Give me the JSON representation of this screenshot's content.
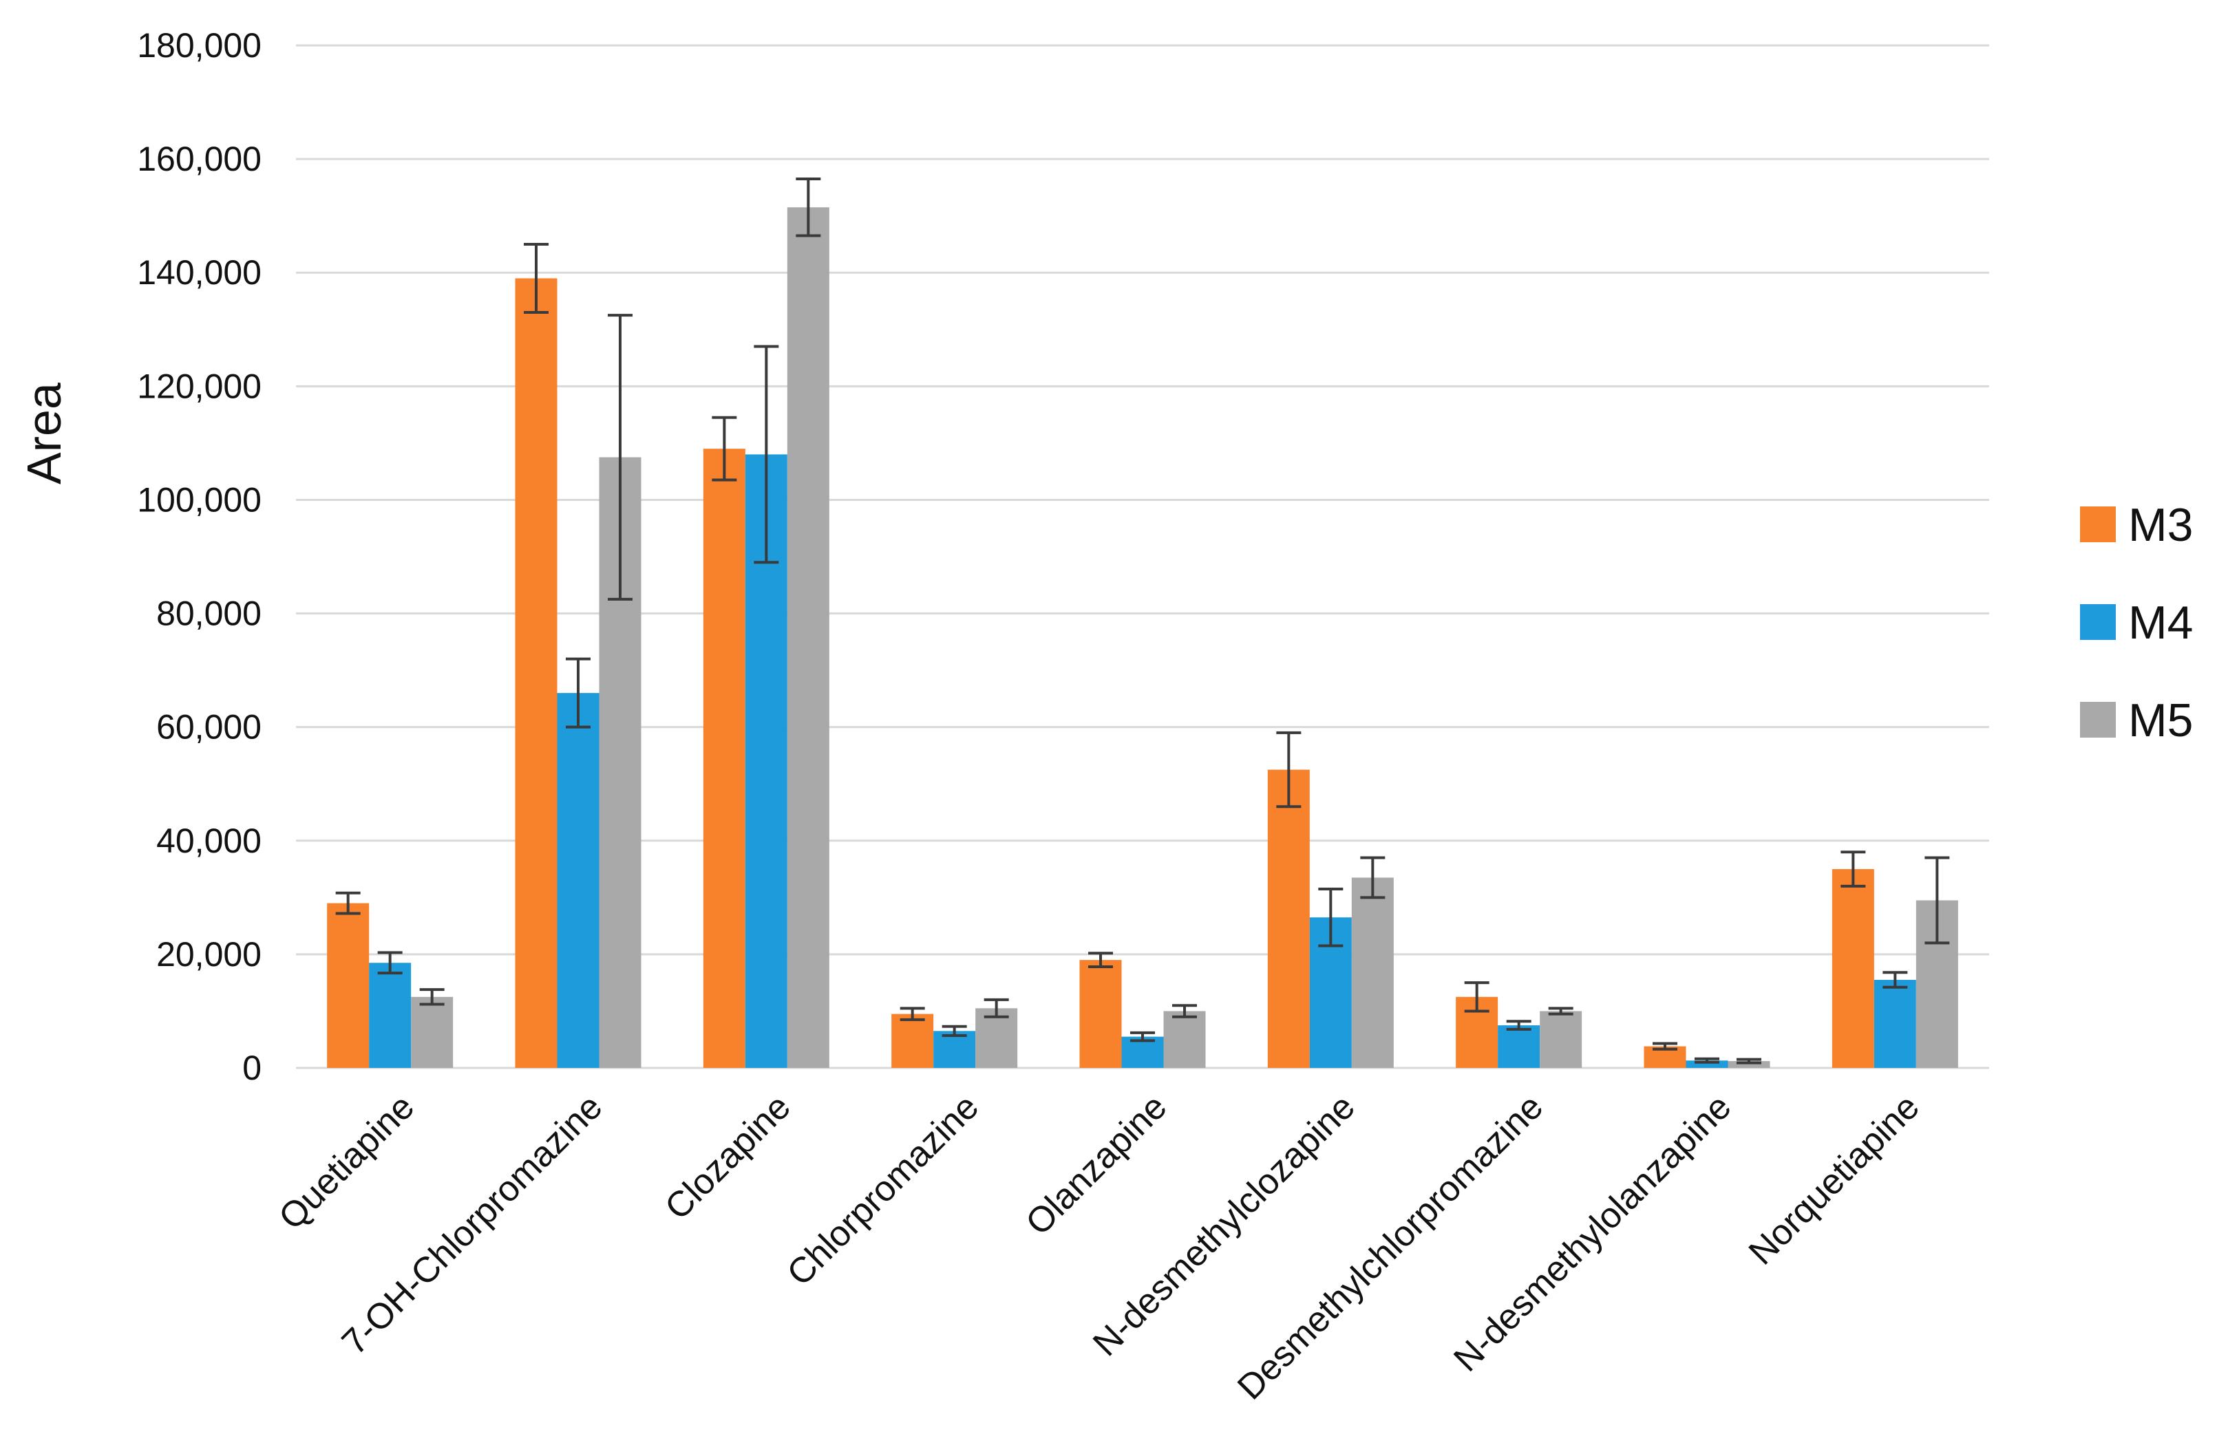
{
  "chart_data": {
    "type": "bar",
    "title": "",
    "xlabel": "",
    "ylabel": "Area",
    "ylim": [
      0,
      180000
    ],
    "yticks": [
      0,
      20000,
      40000,
      60000,
      80000,
      100000,
      120000,
      140000,
      160000,
      180000
    ],
    "ytick_labels": [
      "0",
      "20,000",
      "40,000",
      "60,000",
      "80,000",
      "100,000",
      "120,000",
      "140,000",
      "160,000",
      "180,000"
    ],
    "grid": true,
    "legend_position": "right",
    "categories": [
      "Quetiapine",
      "7-OH-Chlorpromazine",
      "Clozapine",
      "Chlorpromazine",
      "Olanzapine",
      "N-desmethylclozapine",
      "Desmethylchlorpromazine",
      "N-desmethylolanzapine",
      "Norquetiapine"
    ],
    "series": [
      {
        "name": "M3",
        "color": "#f8812c",
        "values": [
          29000,
          139000,
          109000,
          9500,
          19000,
          52500,
          12500,
          3800,
          35000
        ],
        "errors": [
          1800,
          6000,
          5500,
          1000,
          1200,
          6500,
          2500,
          500,
          3000
        ]
      },
      {
        "name": "M4",
        "color": "#1e9bdb",
        "values": [
          18500,
          66000,
          108000,
          6500,
          5500,
          26500,
          7500,
          1300,
          15500
        ],
        "errors": [
          1800,
          6000,
          19000,
          800,
          700,
          5000,
          700,
          300,
          1300
        ]
      },
      {
        "name": "M5",
        "color": "#a9a9a9",
        "values": [
          12500,
          107500,
          151500,
          10500,
          10000,
          33500,
          10000,
          1200,
          29500
        ],
        "errors": [
          1300,
          25000,
          5000,
          1500,
          1000,
          3500,
          500,
          300,
          7500
        ]
      }
    ]
  }
}
